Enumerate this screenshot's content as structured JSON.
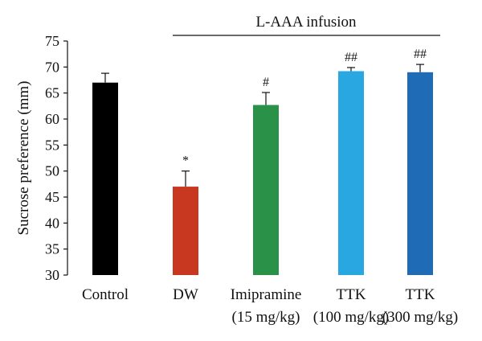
{
  "chart_data": {
    "type": "bar",
    "categories": [
      {
        "line1": "Control",
        "line2": ""
      },
      {
        "line1": "DW",
        "line2": ""
      },
      {
        "line1": "Imipramine",
        "line2": "(15 mg/kg)"
      },
      {
        "line1": "TTK",
        "line2": "(100 mg/kg)"
      },
      {
        "line1": "TTK",
        "line2": "(300 mg/kg)"
      }
    ],
    "values": [
      67,
      47,
      62.7,
      69.2,
      69
    ],
    "errors": [
      1.8,
      3,
      2.4,
      0.7,
      1.5
    ],
    "annotations": [
      "",
      "*",
      "#",
      "##",
      "##"
    ],
    "colors": [
      "#000000",
      "#c8371f",
      "#2a9248",
      "#29a7e1",
      "#1f6bb5"
    ],
    "ylabel": "Sucrose preference (mm)",
    "ylim": [
      30,
      75
    ],
    "yticks": [
      30,
      35,
      40,
      45,
      50,
      55,
      60,
      65,
      70,
      75
    ],
    "bracket": {
      "label": "L-AAA infusion"
    },
    "grid": false
  }
}
